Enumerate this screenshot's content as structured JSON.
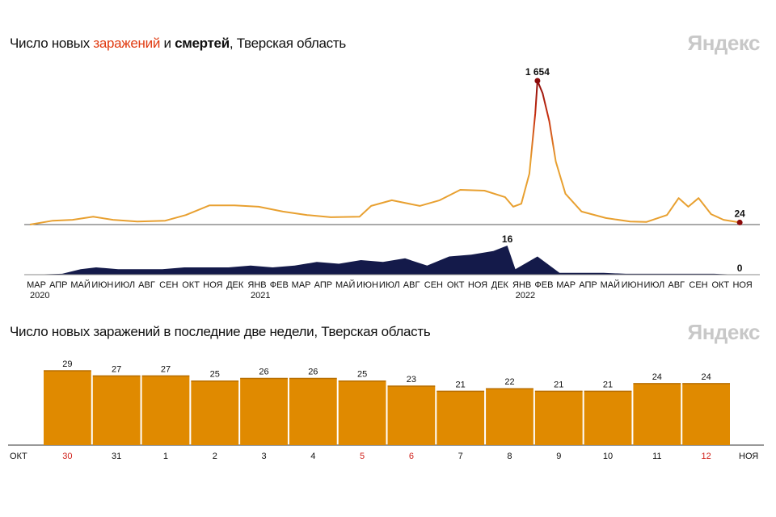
{
  "chart_data": [
    {
      "type": "line",
      "title_parts": {
        "prefix": "Число новых ",
        "cases": "заражений",
        "middle": " и ",
        "deaths": "смертей",
        "suffix": ", Тверская область"
      },
      "logo": "Яндекс",
      "x_ticks": [
        "МАР",
        "АПР",
        "МАЙ",
        "ИЮН",
        "ИЮЛ",
        "АВГ",
        "СЕН",
        "ОКТ",
        "НОЯ",
        "ДЕК",
        "ЯНВ",
        "ФЕВ",
        "МАР",
        "АПР",
        "МАЙ",
        "ИЮН",
        "ИЮЛ",
        "АВГ",
        "СЕН",
        "ОКТ",
        "НОЯ",
        "ДЕК",
        "ЯНВ",
        "ФЕВ",
        "МАР",
        "АПР",
        "МАЙ",
        "ИЮН",
        "ИЮЛ",
        "АВГ",
        "СЕН",
        "ОКТ",
        "НОЯ"
      ],
      "year_labels": [
        {
          "month_index": 0,
          "label": "2020"
        },
        {
          "month_index": 10,
          "label": "2021"
        },
        {
          "month_index": 22,
          "label": "2022"
        }
      ],
      "colors": {
        "cases": "#e8a030",
        "cases_peak": "#8b0a0a",
        "deaths": "#141a4a"
      },
      "series": [
        {
          "name": "заражений",
          "annotations": [
            {
              "date": "2022-02-01",
              "label": "1 654"
            },
            {
              "date": "2022-11-06",
              "label": "24"
            }
          ],
          "points": [
            [
              "2020-03-01",
              0
            ],
            [
              "2020-04-02",
              45
            ],
            [
              "2020-04-29",
              55
            ],
            [
              "2020-05-27",
              90
            ],
            [
              "2020-06-24",
              55
            ],
            [
              "2020-07-27",
              35
            ],
            [
              "2020-09-05",
              45
            ],
            [
              "2020-10-03",
              110
            ],
            [
              "2020-11-05",
              220
            ],
            [
              "2020-12-09",
              220
            ],
            [
              "2021-01-12",
              205
            ],
            [
              "2021-02-15",
              150
            ],
            [
              "2021-03-18",
              110
            ],
            [
              "2021-04-20",
              85
            ],
            [
              "2021-05-29",
              90
            ],
            [
              "2021-06-15",
              215
            ],
            [
              "2021-07-13",
              280
            ],
            [
              "2021-08-21",
              215
            ],
            [
              "2021-09-18",
              280
            ],
            [
              "2021-10-16",
              400
            ],
            [
              "2021-11-19",
              390
            ],
            [
              "2021-12-17",
              315
            ],
            [
              "2021-12-28",
              205
            ],
            [
              "2022-01-09",
              240
            ],
            [
              "2022-01-20",
              585
            ],
            [
              "2022-01-28",
              1280
            ],
            [
              "2022-02-01",
              1654
            ],
            [
              "2022-02-08",
              1510
            ],
            [
              "2022-02-17",
              1190
            ],
            [
              "2022-02-26",
              725
            ],
            [
              "2022-03-09",
              355
            ],
            [
              "2022-04-01",
              150
            ],
            [
              "2022-05-04",
              75
            ],
            [
              "2022-06-07",
              35
            ],
            [
              "2022-06-29",
              30
            ],
            [
              "2022-07-27",
              110
            ],
            [
              "2022-08-13",
              305
            ],
            [
              "2022-08-26",
              205
            ],
            [
              "2022-09-10",
              305
            ],
            [
              "2022-09-27",
              120
            ],
            [
              "2022-10-14",
              55
            ],
            [
              "2022-11-06",
              24
            ]
          ]
        },
        {
          "name": "смертей",
          "annotations": [
            {
              "date": "2021-12-20",
              "label": "16"
            },
            {
              "date": "2022-11-06",
              "label": "0"
            }
          ],
          "points": [
            [
              "2020-03-01",
              0
            ],
            [
              "2020-04-15",
              0.5
            ],
            [
              "2020-05-10",
              3
            ],
            [
              "2020-06-01",
              4
            ],
            [
              "2020-07-01",
              3
            ],
            [
              "2020-08-01",
              3
            ],
            [
              "2020-09-01",
              3
            ],
            [
              "2020-10-01",
              4
            ],
            [
              "2020-11-01",
              4
            ],
            [
              "2020-12-01",
              4
            ],
            [
              "2021-01-01",
              5
            ],
            [
              "2021-02-01",
              4
            ],
            [
              "2021-03-01",
              5
            ],
            [
              "2021-04-01",
              7
            ],
            [
              "2021-05-01",
              6
            ],
            [
              "2021-06-01",
              8
            ],
            [
              "2021-07-01",
              7
            ],
            [
              "2021-08-01",
              9
            ],
            [
              "2021-09-01",
              5
            ],
            [
              "2021-10-01",
              10
            ],
            [
              "2021-11-01",
              11
            ],
            [
              "2021-12-01",
              13
            ],
            [
              "2021-12-20",
              16
            ],
            [
              "2022-01-01",
              3
            ],
            [
              "2022-02-01",
              10
            ],
            [
              "2022-03-01",
              1
            ],
            [
              "2022-04-01",
              1
            ],
            [
              "2022-05-01",
              1
            ],
            [
              "2022-06-01",
              0.5
            ],
            [
              "2022-07-01",
              0.5
            ],
            [
              "2022-08-01",
              0.5
            ],
            [
              "2022-09-01",
              0.5
            ],
            [
              "2022-10-01",
              0.5
            ],
            [
              "2022-11-06",
              0
            ]
          ]
        }
      ]
    },
    {
      "type": "bar",
      "title": "Число новых заражений в последние две недели, Тверская область",
      "logo": "Яндекс",
      "start_month": "ОКТ",
      "end_month": "НОЯ",
      "categories": [
        "30",
        "31",
        "1",
        "2",
        "3",
        "4",
        "5",
        "6",
        "7",
        "8",
        "9",
        "10",
        "11",
        "12"
      ],
      "highlighted_days": [
        "30",
        "5",
        "6",
        "12"
      ],
      "values": [
        29,
        27,
        27,
        25,
        26,
        26,
        25,
        23,
        21,
        22,
        21,
        21,
        24,
        24
      ],
      "colors": {
        "bar": "#e08a00",
        "holiday_label": "#d0201a"
      }
    }
  ]
}
